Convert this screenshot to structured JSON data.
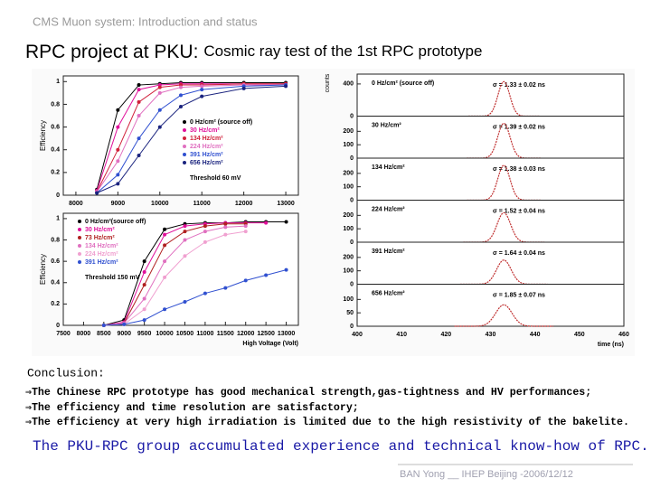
{
  "header": "CMS Muon system: Introduction and status",
  "title": {
    "main": "RPC project at PKU:",
    "sub": "Cosmic ray test of the 1st RPC prototype"
  },
  "charts": [
    {
      "type": "line",
      "ylabel": "Efficiency",
      "xlim": [
        7700,
        13300
      ],
      "ylim": [
        0,
        1.05
      ],
      "xticks": [
        8000,
        9000,
        10000,
        11000,
        12000,
        13000
      ],
      "yticks": [
        0,
        0.2,
        0.4,
        0.6,
        0.8,
        1
      ],
      "x": [
        8500,
        9000,
        9500,
        10000,
        10500,
        11000,
        12000,
        13000
      ],
      "series": [
        {
          "name": "0 Hz/cm² (source off)",
          "color": "#000000",
          "values": [
            0.05,
            0.75,
            0.97,
            0.98,
            0.99,
            0.99,
            0.99,
            0.99
          ]
        },
        {
          "name": "30 Hz/cm²",
          "color": "#e0109a",
          "values": [
            0.04,
            0.6,
            0.93,
            0.97,
            0.98,
            0.98,
            0.98,
            0.98
          ]
        },
        {
          "name": "134 Hz/cm²",
          "color": "#d0203a",
          "values": [
            0.03,
            0.4,
            0.82,
            0.95,
            0.97,
            0.97,
            0.98,
            0.98
          ]
        },
        {
          "name": "224 Hz/cm²",
          "color": "#e070c0",
          "values": [
            0.03,
            0.3,
            0.7,
            0.9,
            0.95,
            0.96,
            0.97,
            0.97
          ]
        },
        {
          "name": "391 Hz/cm²",
          "color": "#3050d0",
          "values": [
            0.02,
            0.18,
            0.5,
            0.75,
            0.88,
            0.93,
            0.96,
            0.97
          ]
        },
        {
          "name": "656 Hz/cm²",
          "color": "#1a237e",
          "values": [
            0.02,
            0.1,
            0.35,
            0.6,
            0.78,
            0.87,
            0.94,
            0.96
          ]
        }
      ],
      "note": "Threshold 60 mV"
    },
    {
      "type": "line",
      "ylabel": "Efficiency",
      "xlabel": "High Voltage (Volt)",
      "xlim": [
        7500,
        13300
      ],
      "ylim": [
        0,
        1.05
      ],
      "xticks": [
        7500,
        8000,
        8500,
        9000,
        9500,
        10000,
        10500,
        11000,
        11500,
        12000,
        12500,
        13000
      ],
      "yticks": [
        0,
        0.2,
        0.4,
        0.6,
        0.8,
        1
      ],
      "x": [
        8500,
        9000,
        9500,
        10000,
        10500,
        11000,
        11500,
        12000,
        12500,
        13000
      ],
      "series": [
        {
          "name": "0 Hz/cm²(source off)",
          "color": "#000000",
          "values": [
            0,
            0.05,
            0.6,
            0.9,
            0.95,
            0.96,
            0.96,
            0.97,
            0.97,
            0.97
          ]
        },
        {
          "name": "30 Hz/cm²",
          "color": "#e0109a",
          "values": [
            0,
            0.03,
            0.5,
            0.85,
            0.93,
            0.95,
            0.96,
            0.96,
            0.96,
            null
          ]
        },
        {
          "name": "73 Hz/cm²",
          "color": "#b02020",
          "values": [
            0,
            0.02,
            0.38,
            0.75,
            0.88,
            0.93,
            0.95,
            0.95,
            null,
            null
          ]
        },
        {
          "name": "134 Hz/cm²",
          "color": "#e070c0",
          "values": [
            0,
            0.02,
            0.25,
            0.6,
            0.8,
            0.88,
            0.92,
            0.93,
            null,
            null
          ]
        },
        {
          "name": "224 Hz/cm²",
          "color": "#f0a0d0",
          "values": [
            0,
            0.01,
            0.15,
            0.45,
            0.65,
            0.78,
            0.85,
            0.88,
            null,
            null
          ]
        },
        {
          "name": "391 Hz/cm²",
          "color": "#3050d0",
          "values": [
            0,
            0.01,
            0.05,
            0.15,
            0.22,
            0.3,
            0.35,
            0.42,
            0.47,
            0.52
          ]
        }
      ],
      "note": "Threshold 150 mV"
    }
  ],
  "histograms": {
    "type": "histogram",
    "ylabel": "counts",
    "xlabel": "time (ns)",
    "xlim": [
      400,
      460
    ],
    "xticks": [
      400,
      410,
      420,
      430,
      440,
      450,
      460
    ],
    "color": "#c03030",
    "panels": [
      {
        "name": "0 Hz/cm² (source off)",
        "sigma": 1.33,
        "sigma_label": "σ = 1.33 ± 0.02 ns",
        "mean": 433,
        "peak": 430,
        "ylim": [
          0,
          500
        ],
        "yticks": [
          0,
          400
        ]
      },
      {
        "name": "30 Hz/cm²",
        "sigma": 1.39,
        "sigma_label": "σ = 1.39 ± 0.02 ns",
        "mean": 433,
        "peak": 260,
        "ylim": [
          0,
          300
        ],
        "yticks": [
          0,
          100,
          200
        ]
      },
      {
        "name": "134 Hz/cm²",
        "sigma": 1.38,
        "sigma_label": "σ = 1.38 ± 0.03 ns",
        "mean": 433,
        "peak": 260,
        "ylim": [
          0,
          300
        ],
        "yticks": [
          0,
          100,
          200
        ]
      },
      {
        "name": "224 Hz/cm²",
        "sigma": 1.52,
        "sigma_label": "σ = 1.52 ± 0.04 ns",
        "mean": 433,
        "peak": 220,
        "ylim": [
          0,
          300
        ],
        "yticks": [
          0,
          100,
          200
        ]
      },
      {
        "name": "391 Hz/cm²",
        "sigma": 1.64,
        "sigma_label": "σ = 1.64 ± 0.04 ns",
        "mean": 433,
        "peak": 180,
        "ylim": [
          0,
          300
        ],
        "yticks": [
          0,
          100,
          200
        ]
      },
      {
        "name": "656 Hz/cm²",
        "sigma": 1.85,
        "sigma_label": "σ = 1.85 ± 0.07 ns",
        "mean": 433,
        "peak": 80,
        "ylim": [
          0,
          150
        ],
        "yticks": [
          0,
          50,
          100
        ]
      }
    ]
  },
  "conclusion": {
    "heading": "Conclusion:",
    "items": [
      "⇒The Chinese RPC prototype has good mechanical strength,gas-tightness and HV performances;",
      "⇒The efficiency and time resolution are satisfactory;",
      "⇒The efficiency at very high irradiation is limited due to the high resistivity of the bakelite."
    ]
  },
  "summary": "The PKU-RPC group accumulated experience and technical know-how of RPC.",
  "footer": "BAN Yong __ IHEP Beijing -2006/12/12"
}
